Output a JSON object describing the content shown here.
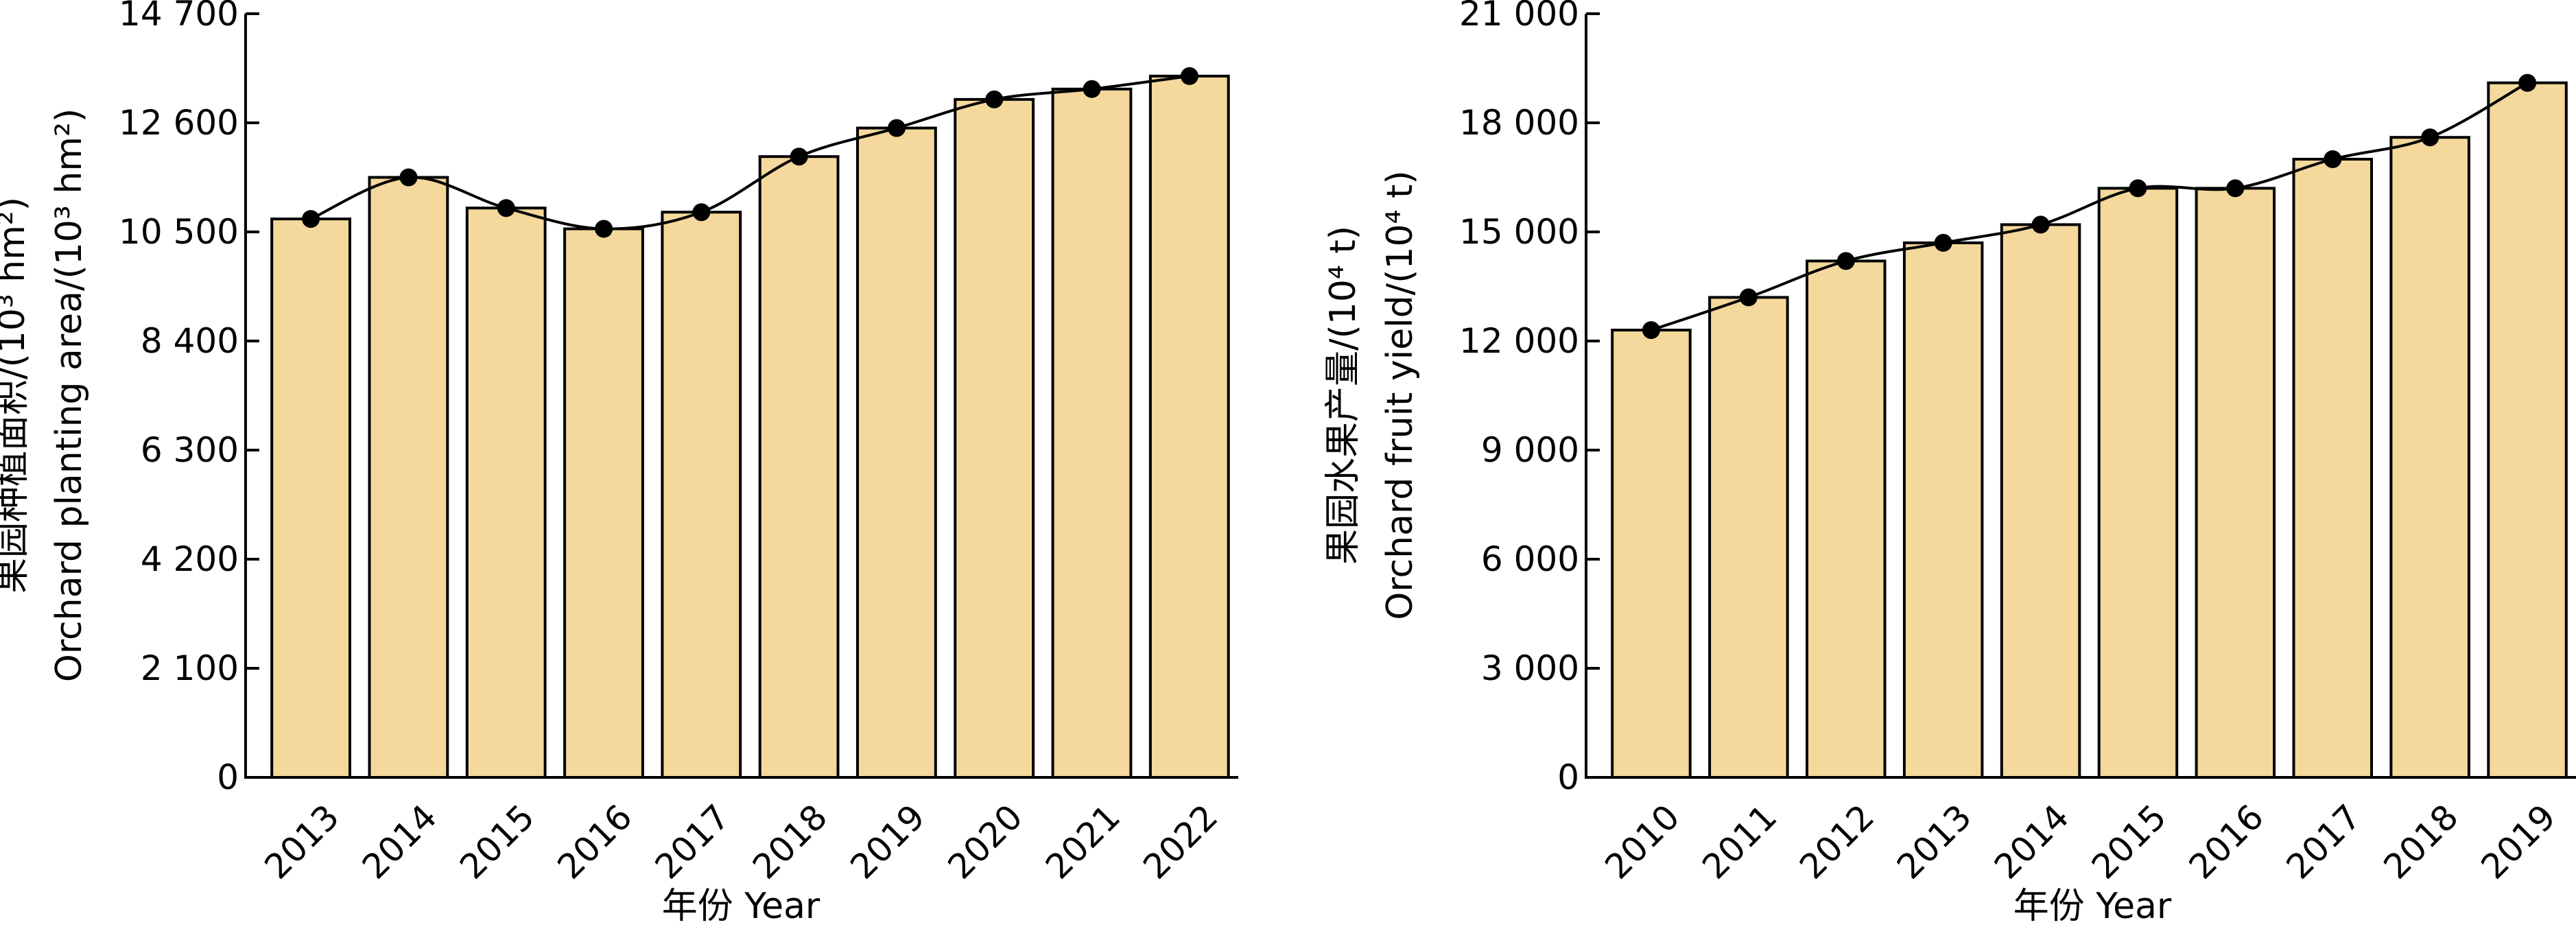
{
  "colors": {
    "bar_fill": "#f4d89c",
    "stroke": "#000000",
    "background": "#ffffff"
  },
  "chart_data": [
    {
      "type": "bar",
      "overlay": "line-with-markers",
      "categories": [
        "2013",
        "2014",
        "2015",
        "2016",
        "2017",
        "2018",
        "2019",
        "2020",
        "2021",
        "2022"
      ],
      "values": [
        10750,
        11550,
        10960,
        10560,
        10880,
        11950,
        12500,
        13050,
        13250,
        13500
      ],
      "ylim": [
        0,
        14700
      ],
      "yticks": [
        0,
        2100,
        4200,
        6300,
        8400,
        10500,
        12600,
        14700
      ],
      "ytick_labels": [
        "0",
        "2 100",
        "4 200",
        "6 300",
        "8 400",
        "10 500",
        "12 600",
        "14 700"
      ],
      "xlabel": "年份 Year",
      "ylabel_cn": "果园种植面积/(10³ hm²)",
      "ylabel_en": "Orchard planting area/(10³ hm²)",
      "grid": false
    },
    {
      "type": "bar",
      "overlay": "line-with-markers",
      "categories": [
        "2010",
        "2011",
        "2012",
        "2013",
        "2014",
        "2015",
        "2016",
        "2017",
        "2018",
        "2019"
      ],
      "values": [
        12300,
        13200,
        14200,
        14700,
        15200,
        16200,
        16200,
        17000,
        17600,
        19100
      ],
      "ylim": [
        0,
        21000
      ],
      "yticks": [
        0,
        3000,
        6000,
        9000,
        12000,
        15000,
        18000,
        21000
      ],
      "ytick_labels": [
        "0",
        "3 000",
        "6 000",
        "9 000",
        "12 000",
        "15 000",
        "18 000",
        "21 000"
      ],
      "xlabel": "年份 Year",
      "ylabel_cn": "果园水果产量/(10⁴ t)",
      "ylabel_en": "Orchard fruit yield/(10⁴ t)",
      "grid": false
    }
  ]
}
